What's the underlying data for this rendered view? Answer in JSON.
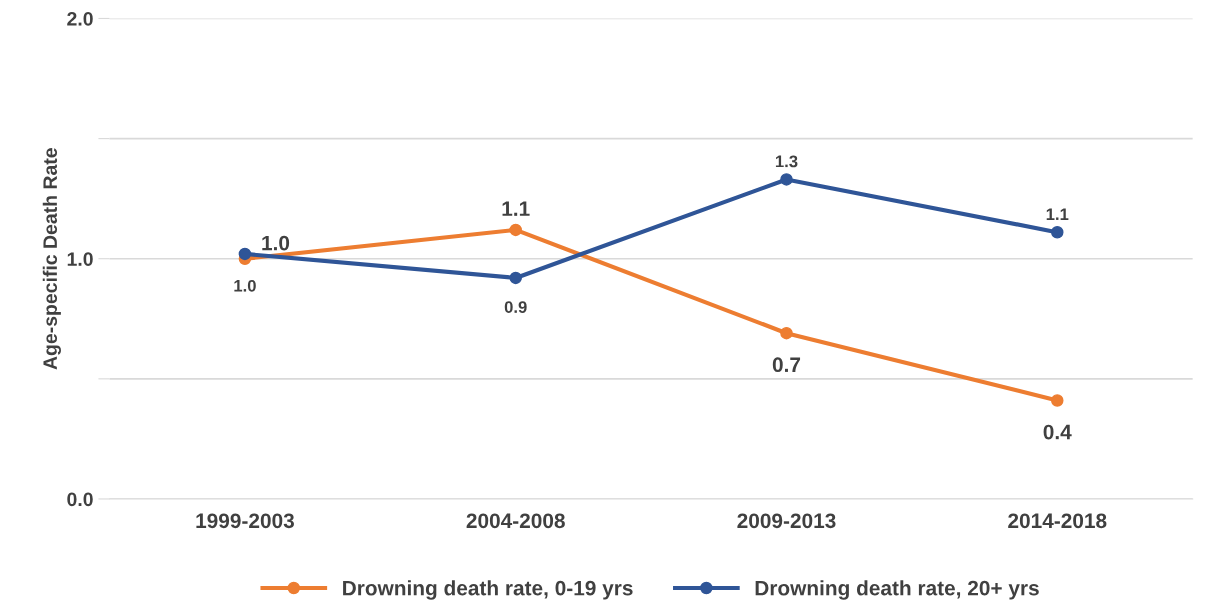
{
  "chart_data": {
    "type": "line",
    "ylabel": "Age-specific Death Rate",
    "categories": [
      "1999-2003",
      "2004-2008",
      "2009-2013",
      "2014-2018"
    ],
    "series": [
      {
        "name": "Drowning death rate, 0-19 yrs",
        "color": "#ed7d31",
        "values": [
          1.0,
          1.12,
          0.69,
          0.41
        ],
        "value_labels": [
          "1.0",
          "1.1",
          "0.7",
          "0.4"
        ]
      },
      {
        "name": "Drowning death rate, 20+ yrs",
        "color": "#2f5597",
        "values": [
          1.02,
          0.92,
          1.33,
          1.11
        ],
        "value_labels": [
          "1.0",
          "0.9",
          "1.3",
          "1.1"
        ]
      }
    ],
    "ylim": [
      0,
      2.0
    ],
    "yticks": [
      {
        "value": 0,
        "label": "0.0"
      },
      {
        "value": 0.5,
        "label": null
      },
      {
        "value": 1.0,
        "label": "1.0"
      },
      {
        "value": 1.5,
        "label": null
      },
      {
        "value": 2.0,
        "label": "2.0"
      }
    ],
    "grid": "y",
    "legend": "bottom",
    "marker": "circle",
    "line_style": "solid"
  }
}
